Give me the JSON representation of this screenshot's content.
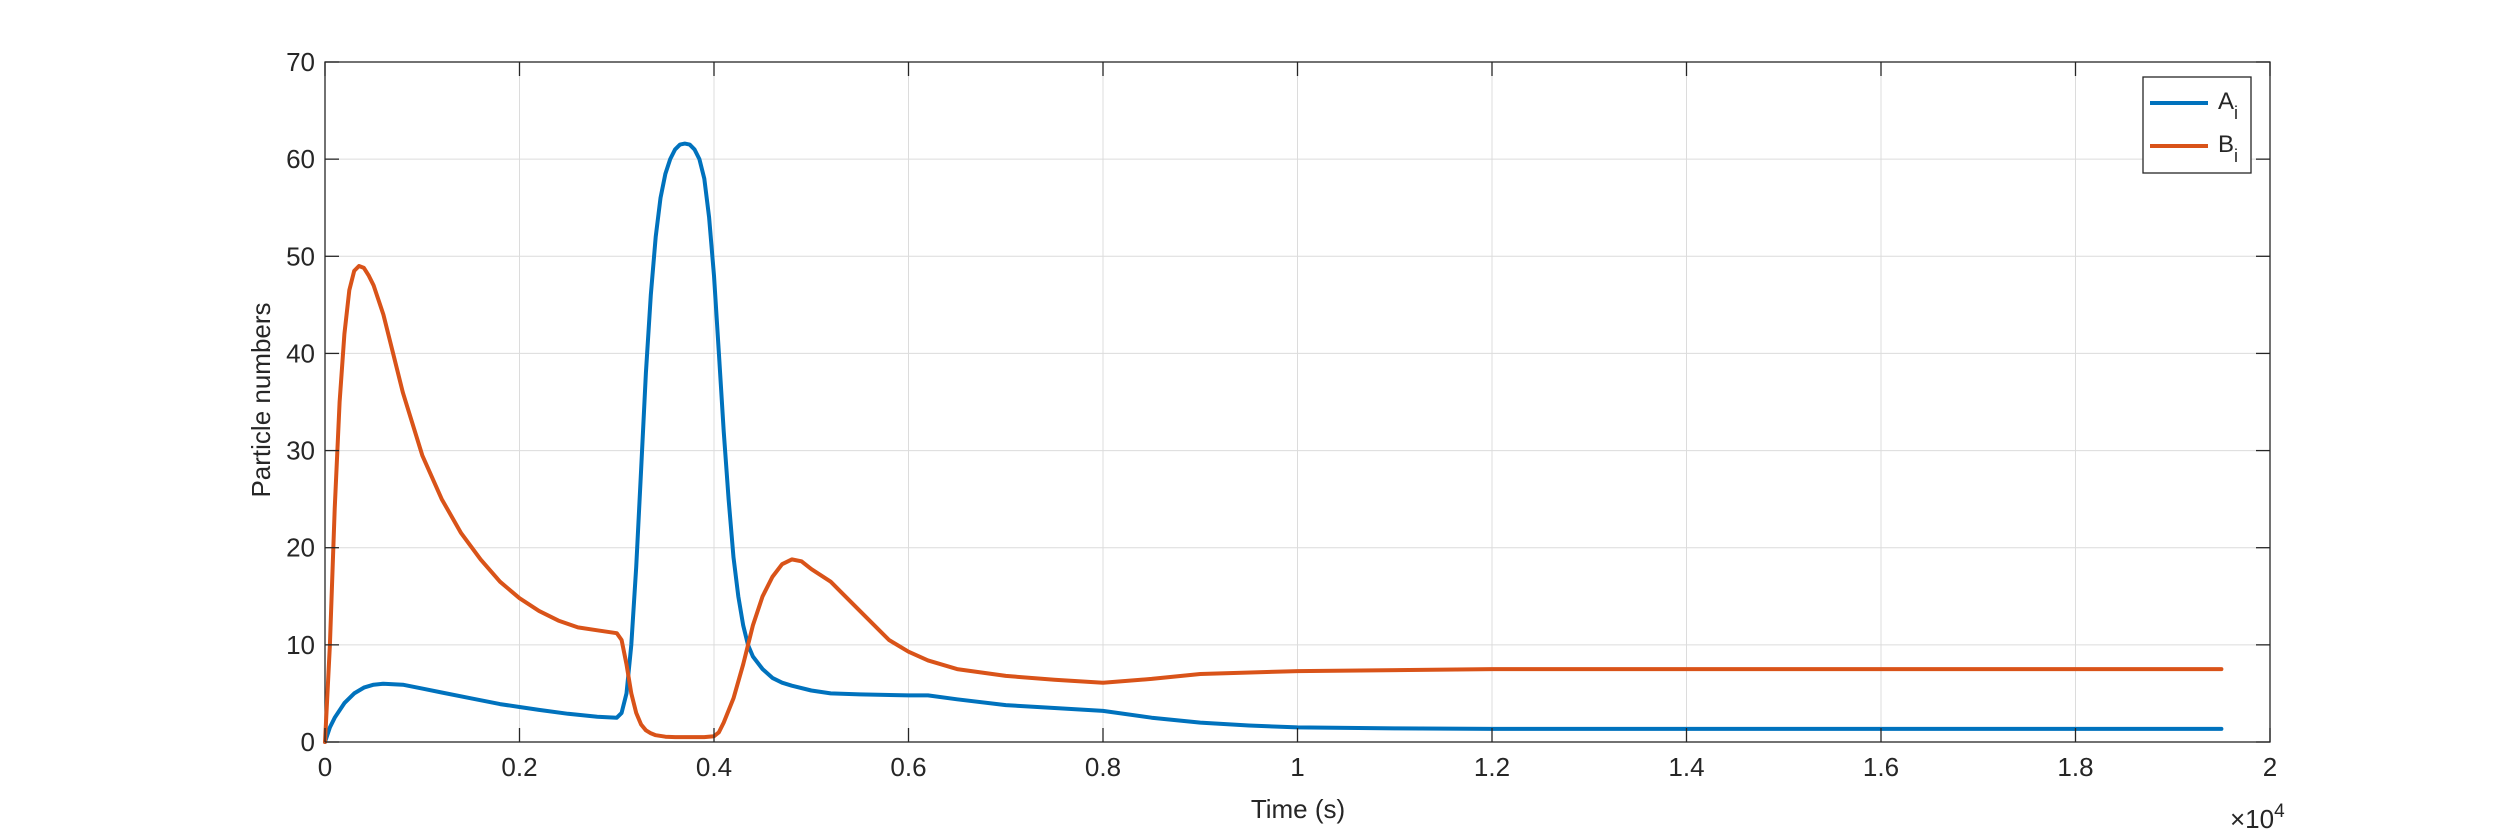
{
  "chart_data": {
    "type": "line",
    "title": "",
    "xlabel": "Time (s)",
    "ylabel": "Particle numbers",
    "x_exponent_label": "×10",
    "x_exponent_power": "4",
    "xlim": [
      0,
      2
    ],
    "ylim": [
      0,
      70
    ],
    "xticks": [
      0,
      0.2,
      0.4,
      0.6,
      0.8,
      1,
      1.2,
      1.4,
      1.6,
      1.8,
      2
    ],
    "xtick_labels": [
      "0",
      "0.2",
      "0.4",
      "0.6",
      "0.8",
      "1",
      "1.2",
      "1.4",
      "1.6",
      "1.8",
      "2"
    ],
    "yticks": [
      0,
      10,
      20,
      30,
      40,
      50,
      60,
      70
    ],
    "ytick_labels": [
      "0",
      "10",
      "20",
      "30",
      "40",
      "50",
      "60",
      "70"
    ],
    "grid": true,
    "legend_position": "top-right",
    "series": [
      {
        "name": "A",
        "name_subscript": "i",
        "color": "#0072BD",
        "x": [
          0,
          0.005,
          0.01,
          0.02,
          0.03,
          0.04,
          0.05,
          0.06,
          0.08,
          0.1,
          0.12,
          0.15,
          0.18,
          0.2,
          0.22,
          0.25,
          0.28,
          0.3,
          0.305,
          0.31,
          0.315,
          0.32,
          0.325,
          0.33,
          0.335,
          0.34,
          0.345,
          0.35,
          0.355,
          0.36,
          0.365,
          0.37,
          0.375,
          0.38,
          0.385,
          0.39,
          0.395,
          0.4,
          0.405,
          0.41,
          0.415,
          0.42,
          0.425,
          0.43,
          0.435,
          0.44,
          0.45,
          0.46,
          0.47,
          0.48,
          0.5,
          0.52,
          0.55,
          0.6,
          0.62,
          0.65,
          0.7,
          0.75,
          0.8,
          0.85,
          0.9,
          0.95,
          1.0,
          1.1,
          1.2,
          1.4,
          1.6,
          1.8,
          1.95
        ],
        "y": [
          0,
          1.5,
          2.5,
          4.0,
          5.0,
          5.6,
          5.9,
          6.0,
          5.9,
          5.5,
          5.1,
          4.5,
          3.9,
          3.6,
          3.3,
          2.9,
          2.6,
          2.5,
          3.0,
          5.0,
          10.0,
          18.0,
          28.0,
          38.0,
          46.0,
          52.0,
          56.0,
          58.5,
          60.0,
          61.0,
          61.5,
          61.6,
          61.5,
          61.0,
          60.0,
          58.0,
          54.0,
          48.0,
          40.0,
          32.0,
          25.0,
          19.0,
          15.0,
          12.0,
          10.0,
          8.8,
          7.5,
          6.6,
          6.1,
          5.8,
          5.3,
          5.0,
          4.9,
          4.8,
          4.8,
          4.4,
          3.8,
          3.5,
          3.2,
          2.5,
          2.0,
          1.7,
          1.5,
          1.4,
          1.35,
          1.35,
          1.35,
          1.35,
          1.35
        ]
      },
      {
        "name": "B",
        "name_subscript": "i",
        "color": "#D95319",
        "x": [
          0,
          0.005,
          0.01,
          0.015,
          0.02,
          0.025,
          0.03,
          0.035,
          0.04,
          0.045,
          0.05,
          0.055,
          0.06,
          0.07,
          0.08,
          0.1,
          0.12,
          0.14,
          0.16,
          0.18,
          0.2,
          0.22,
          0.24,
          0.26,
          0.28,
          0.3,
          0.305,
          0.31,
          0.315,
          0.32,
          0.325,
          0.33,
          0.335,
          0.34,
          0.35,
          0.36,
          0.37,
          0.38,
          0.39,
          0.4,
          0.405,
          0.41,
          0.42,
          0.43,
          0.44,
          0.45,
          0.46,
          0.47,
          0.48,
          0.49,
          0.5,
          0.52,
          0.53,
          0.55,
          0.58,
          0.6,
          0.62,
          0.65,
          0.7,
          0.75,
          0.8,
          0.85,
          0.9,
          1.0,
          1.2,
          1.5,
          1.8,
          1.95
        ],
        "y": [
          0,
          10.0,
          24.0,
          35.0,
          42.0,
          46.5,
          48.5,
          49.0,
          48.8,
          48.0,
          47.0,
          45.5,
          44.0,
          40.0,
          36.0,
          29.5,
          25.0,
          21.5,
          18.8,
          16.5,
          14.8,
          13.5,
          12.5,
          11.8,
          11.5,
          11.2,
          10.5,
          8.0,
          5.0,
          3.0,
          1.8,
          1.2,
          0.9,
          0.7,
          0.55,
          0.5,
          0.5,
          0.5,
          0.5,
          0.6,
          1.0,
          2.0,
          4.5,
          8.0,
          12.0,
          15.0,
          17.0,
          18.3,
          18.8,
          18.6,
          17.8,
          16.5,
          15.5,
          13.5,
          10.5,
          9.3,
          8.4,
          7.5,
          6.8,
          6.4,
          6.1,
          6.5,
          7.0,
          7.3,
          7.5,
          7.5,
          7.5,
          7.5
        ]
      }
    ]
  }
}
